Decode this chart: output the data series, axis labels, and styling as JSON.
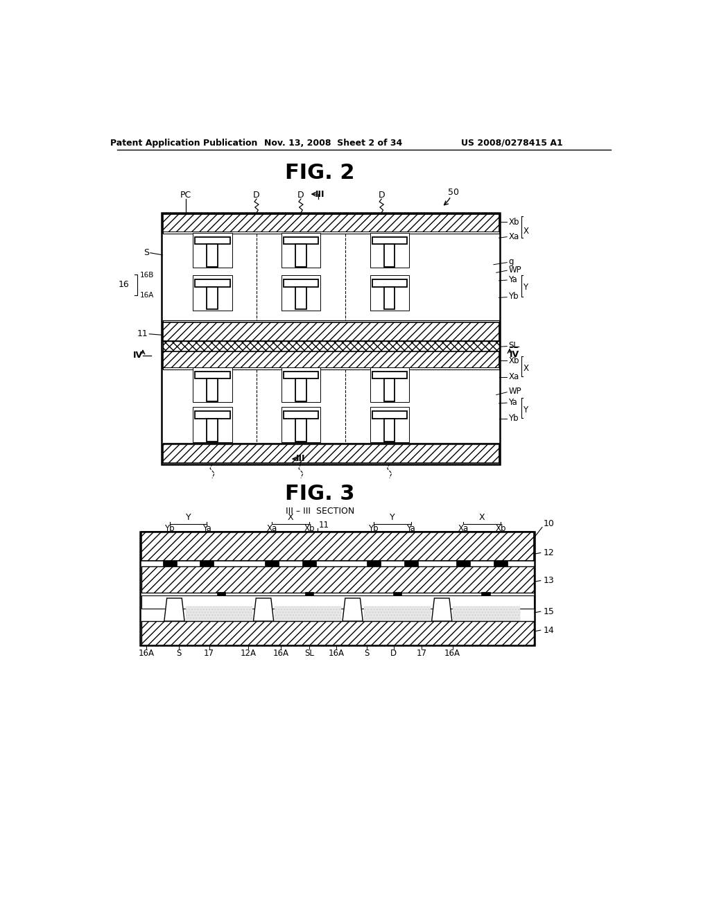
{
  "page_header_left": "Patent Application Publication",
  "page_header_mid": "Nov. 13, 2008  Sheet 2 of 34",
  "page_header_right": "US 2008/0278415 A1",
  "fig2_title": "FIG. 2",
  "fig3_title": "FIG. 3",
  "fig3_subtitle": "III – III  SECTION",
  "bg_color": "#ffffff"
}
